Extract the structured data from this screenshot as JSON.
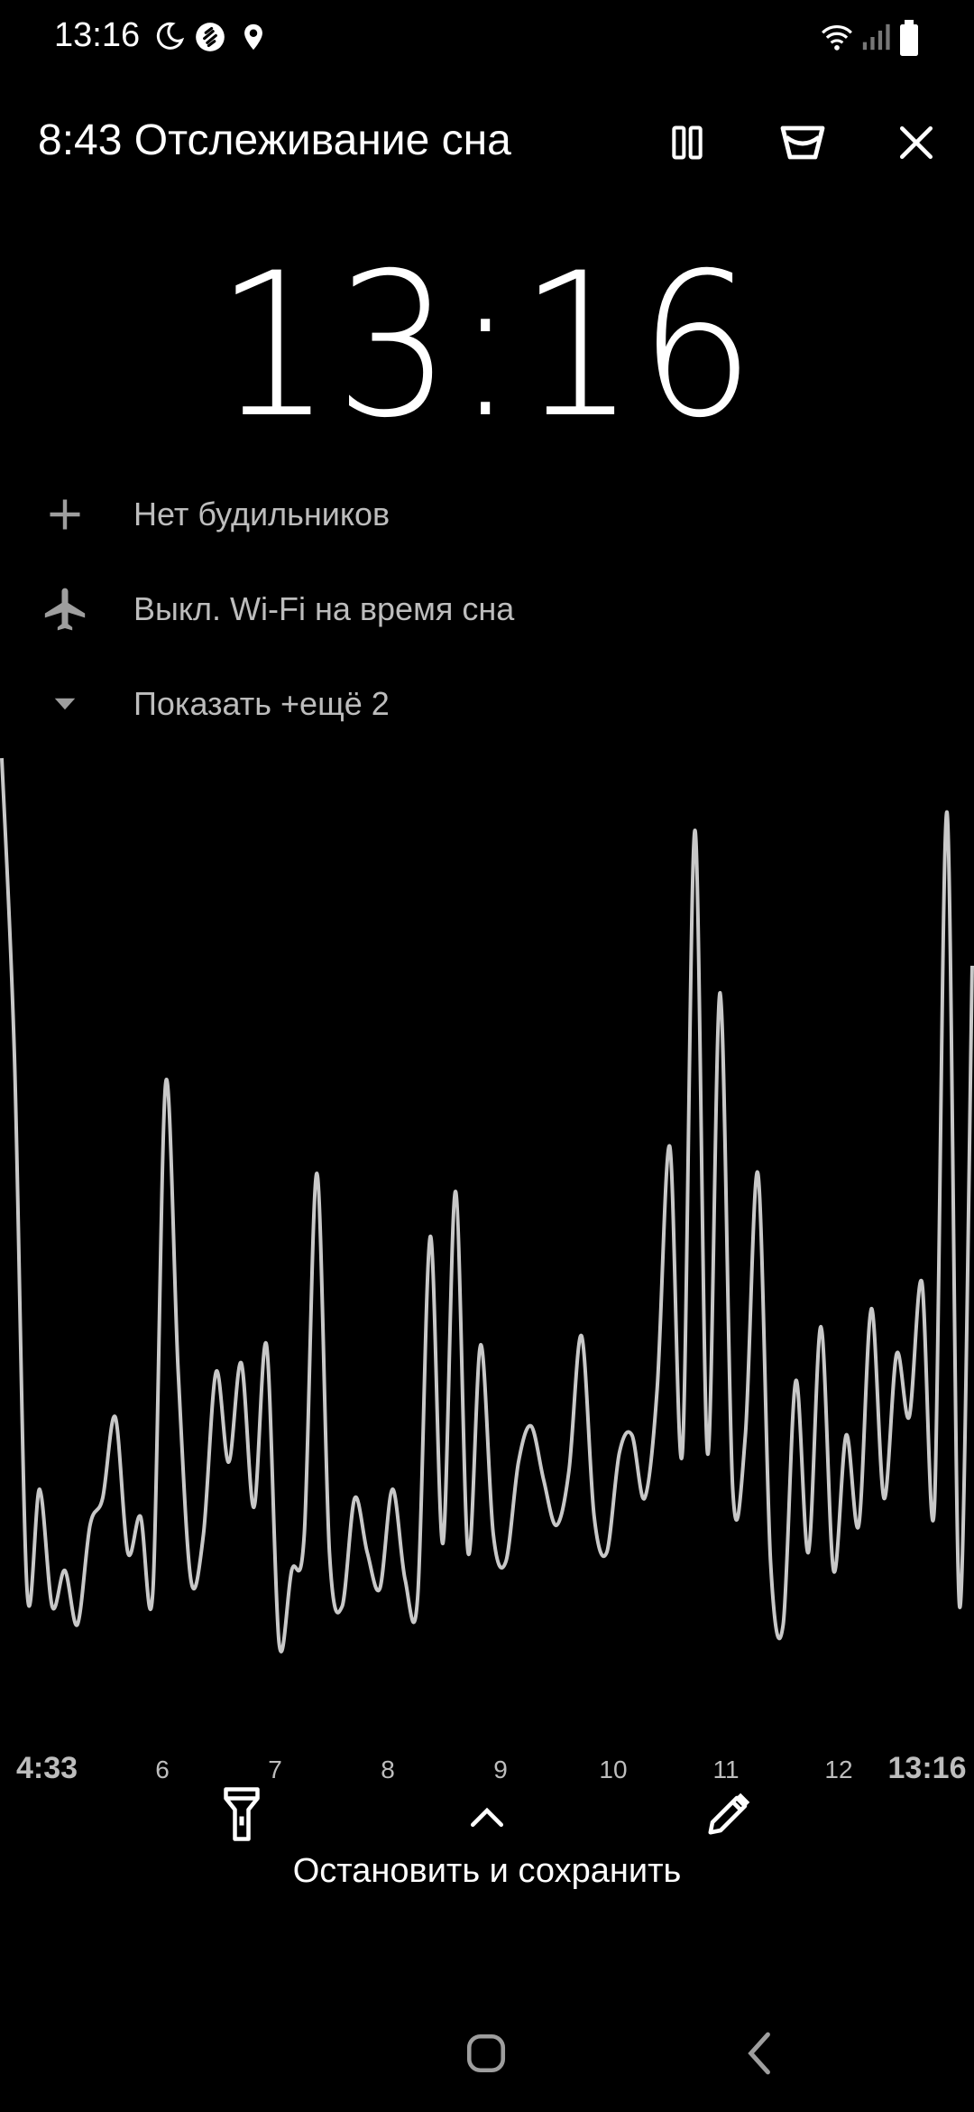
{
  "status_bar": {
    "time": "13:16",
    "icons": [
      "moon-icon",
      "shazam-icon",
      "location-icon",
      "wifi-icon",
      "signal-icon",
      "battery-icon"
    ]
  },
  "header": {
    "title": "8:43 Отслеживание сна",
    "buttons": [
      "pause-icon",
      "lullaby-icon",
      "close-icon"
    ]
  },
  "clock": {
    "time": "13:16"
  },
  "options": [
    {
      "icon": "plus-icon",
      "label": "Нет будильников"
    },
    {
      "icon": "airplane-icon",
      "label": "Выкл. Wi-Fi на время сна"
    },
    {
      "icon": "triangle-down-icon",
      "label": "Показать +ещё 2"
    }
  ],
  "chart_data": {
    "type": "line",
    "series": [
      {
        "values": [
          0.98,
          0.65,
          0.06,
          0.17,
          0.04,
          0.08,
          0.02,
          0.13,
          0.16,
          0.25,
          0.1,
          0.14,
          0.06,
          0.62,
          0.3,
          0.07,
          0.12,
          0.3,
          0.2,
          0.31,
          0.15,
          0.33,
          0.0,
          0.08,
          0.12,
          0.52,
          0.1,
          0.04,
          0.16,
          0.1,
          0.06,
          0.17,
          0.07,
          0.05,
          0.45,
          0.11,
          0.5,
          0.1,
          0.33,
          0.12,
          0.09,
          0.2,
          0.24,
          0.18,
          0.13,
          0.19,
          0.34,
          0.14,
          0.1,
          0.21,
          0.23,
          0.16,
          0.28,
          0.55,
          0.21,
          0.9,
          0.21,
          0.72,
          0.17,
          0.23,
          0.52,
          0.09,
          0.02,
          0.29,
          0.1,
          0.35,
          0.08,
          0.23,
          0.13,
          0.37,
          0.16,
          0.32,
          0.25,
          0.4,
          0.15,
          0.92,
          0.04,
          0.75
        ],
        "color": "#c8c8c8"
      }
    ],
    "x_ticks": [
      "4:33",
      "6",
      "7",
      "8",
      "9",
      "10",
      "11",
      "12",
      "13:16"
    ],
    "grid": false,
    "legend": "none"
  },
  "bottom": {
    "flashlight_icon": "flashlight-icon",
    "expand_icon": "chevron-up-icon",
    "edit_icon": "pencil-icon",
    "stop_label": "Остановить и сохранить"
  },
  "nav": [
    "home-icon",
    "back-icon"
  ]
}
